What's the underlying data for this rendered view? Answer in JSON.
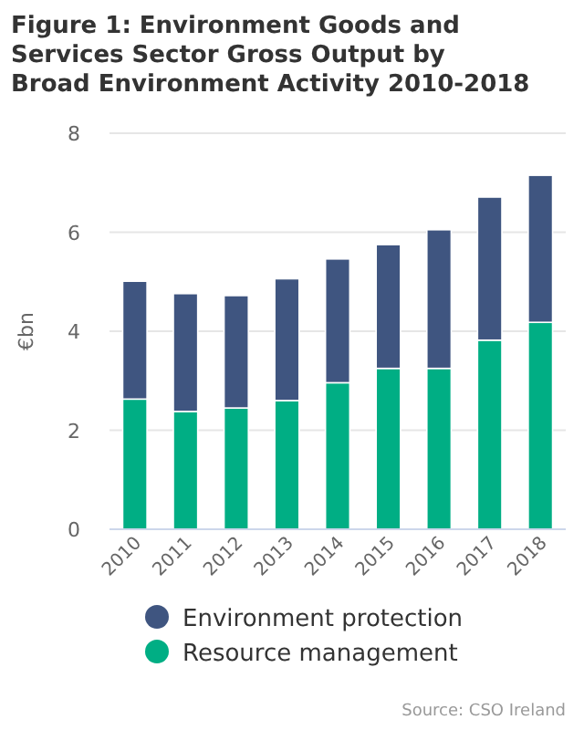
{
  "chart_data": {
    "type": "bar",
    "title": "Figure 1: Environment Goods and Services Sector Gross Output by Broad Environment Activity 2010-2018",
    "ylabel": "€bn",
    "categories": [
      "2010",
      "2011",
      "2012",
      "2013",
      "2014",
      "2015",
      "2016",
      "2017",
      "2018"
    ],
    "stacked": true,
    "series": [
      {
        "name": "Resource management",
        "color": "#00ae84",
        "values": [
          2.63,
          2.38,
          2.45,
          2.6,
          2.96,
          3.25,
          3.25,
          3.82,
          4.18
        ]
      },
      {
        "name": "Environment protection",
        "color": "#3f5580",
        "values": [
          2.38,
          2.38,
          2.27,
          2.46,
          2.5,
          2.5,
          2.8,
          2.89,
          2.97
        ]
      }
    ],
    "ylim": [
      0,
      8
    ],
    "yticks": [
      0,
      2,
      4,
      6,
      8
    ],
    "grid": "y",
    "legend": "bottom",
    "annotations": [
      "Source: CSO Ireland"
    ]
  }
}
